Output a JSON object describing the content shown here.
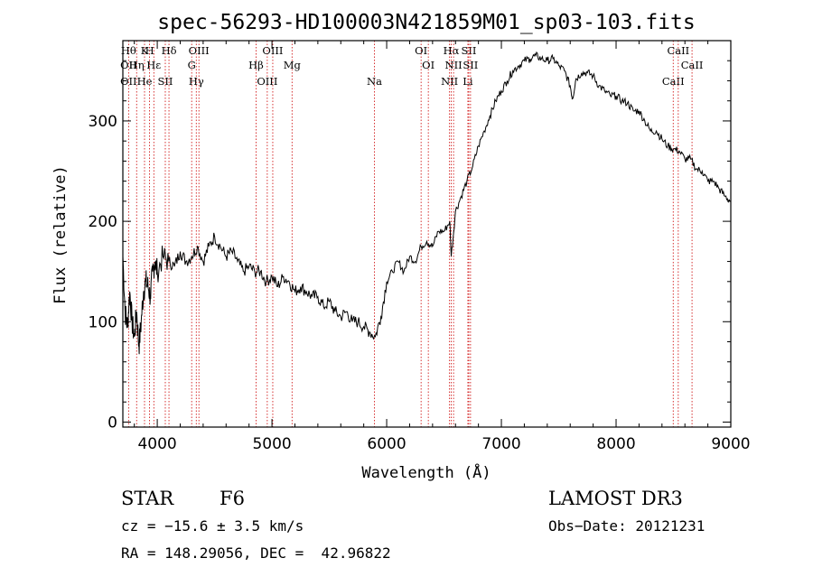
{
  "chart_data": {
    "type": "line",
    "title": "spec-56293-HD100003N421859M01_sp03-103.fits",
    "xlabel": "Wavelength (Å)",
    "ylabel": "Flux (relative)",
    "xlim": [
      3700,
      9000
    ],
    "ylim": [
      -5,
      380
    ],
    "xticks": [
      4000,
      5000,
      6000,
      7000,
      8000,
      9000
    ],
    "yticks": [
      0,
      100,
      200,
      300
    ],
    "grid": false,
    "legend": "none",
    "line_color": "#000000",
    "marker_color": "#cc0000",
    "series": [
      {
        "x": [
          3700,
          3720,
          3740,
          3760,
          3780,
          3800,
          3820,
          3840,
          3860,
          3880,
          3900,
          3920,
          3940,
          3960,
          3980,
          4000,
          4050,
          4100,
          4150,
          4200,
          4250,
          4300,
          4350,
          4400,
          4450,
          4500,
          4550,
          4600,
          4650,
          4700,
          4750,
          4800,
          4850,
          4900,
          4950,
          5000,
          5050,
          5100,
          5150,
          5200,
          5250,
          5300,
          5350,
          5400,
          5450,
          5500,
          5550,
          5600,
          5650,
          5700,
          5750,
          5800,
          5850,
          5900,
          5950,
          6000,
          6050,
          6100,
          6150,
          6200,
          6250,
          6300,
          6350,
          6400,
          6450,
          6500,
          6550,
          6563,
          6600,
          6650,
          6700,
          6750,
          6800,
          6850,
          6900,
          6950,
          7000,
          7050,
          7100,
          7150,
          7200,
          7250,
          7300,
          7350,
          7400,
          7450,
          7500,
          7550,
          7600,
          7620,
          7650,
          7700,
          7750,
          7800,
          7850,
          7900,
          7950,
          8000,
          8050,
          8100,
          8150,
          8200,
          8250,
          8300,
          8350,
          8400,
          8450,
          8500,
          8550,
          8600,
          8650,
          8700,
          8750,
          8800,
          8850,
          8900,
          8950,
          9000
        ],
        "y": [
          165,
          110,
          95,
          130,
          100,
          85,
          110,
          75,
          100,
          130,
          140,
          135,
          125,
          150,
          160,
          150,
          165,
          160,
          155,
          170,
          160,
          165,
          175,
          160,
          175,
          185,
          175,
          165,
          170,
          160,
          150,
          155,
          150,
          150,
          140,
          145,
          135,
          145,
          140,
          130,
          135,
          130,
          125,
          125,
          115,
          120,
          110,
          105,
          110,
          100,
          100,
          95,
          90,
          85,
          105,
          140,
          150,
          160,
          150,
          165,
          160,
          175,
          180,
          175,
          190,
          190,
          200,
          165,
          210,
          225,
          240,
          255,
          275,
          290,
          305,
          320,
          330,
          340,
          350,
          355,
          360,
          362,
          365,
          362,
          360,
          362,
          355,
          350,
          335,
          322,
          342,
          348,
          348,
          345,
          335,
          330,
          325,
          325,
          320,
          318,
          310,
          310,
          300,
          290,
          290,
          282,
          275,
          272,
          270,
          262,
          262,
          252,
          250,
          240,
          240,
          232,
          225,
          220
        ]
      }
    ],
    "line_markers": [
      {
        "x": 3750,
        "labels": [
          "Hθ",
          "OII",
          "OII"
        ]
      },
      {
        "x": 3820,
        "labels": [
          "Hη"
        ]
      },
      {
        "x": 3889,
        "labels": [
          "He",
          "K"
        ]
      },
      {
        "x": 3933,
        "labels": [
          "H"
        ]
      },
      {
        "x": 3970,
        "labels": [
          "Hε"
        ]
      },
      {
        "x": 4070,
        "labels": [
          "SII"
        ]
      },
      {
        "x": 4102,
        "labels": [
          "Hδ"
        ]
      },
      {
        "x": 4300,
        "labels": [
          "G"
        ]
      },
      {
        "x": 4340,
        "labels": [
          "Hγ"
        ]
      },
      {
        "x": 4363,
        "labels": [
          "OIII"
        ]
      },
      {
        "x": 4861,
        "labels": [
          "Hβ"
        ]
      },
      {
        "x": 4959,
        "labels": [
          "OIII"
        ]
      },
      {
        "x": 5007,
        "labels": [
          "OIII"
        ]
      },
      {
        "x": 5175,
        "labels": [
          "Mg"
        ]
      },
      {
        "x": 5893,
        "labels": [
          "Na"
        ]
      },
      {
        "x": 6300,
        "labels": [
          "OI"
        ]
      },
      {
        "x": 6363,
        "labels": [
          "OI"
        ]
      },
      {
        "x": 6548,
        "labels": [
          "NII"
        ]
      },
      {
        "x": 6563,
        "labels": [
          "Hα"
        ]
      },
      {
        "x": 6583,
        "labels": [
          "NII"
        ]
      },
      {
        "x": 6708,
        "labels": [
          "Li"
        ]
      },
      {
        "x": 6716,
        "labels": [
          "SII"
        ]
      },
      {
        "x": 6731,
        "labels": [
          "SII"
        ]
      },
      {
        "x": 8498,
        "labels": [
          "CaII"
        ]
      },
      {
        "x": 8542,
        "labels": [
          "CaII"
        ]
      },
      {
        "x": 8662,
        "labels": [
          "CaII"
        ]
      }
    ]
  },
  "info": {
    "class": "STAR",
    "subclass": "F6",
    "survey": "LAMOST DR3",
    "cz": "cz = −15.6 ± 3.5 km/s",
    "obs_date": "Obs−Date: 20121231",
    "coords": "RA = 148.29056, DEC =  42.96822"
  }
}
